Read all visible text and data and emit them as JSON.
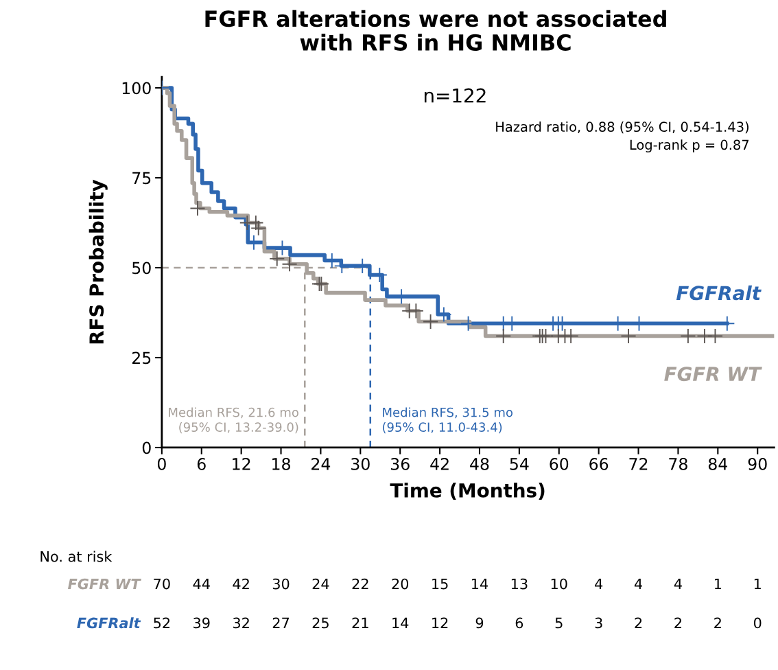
{
  "chart_data": [
    {
      "type": "step",
      "title": "FGFR alterations were not associated\nwith RFS in HG NMIBC",
      "subtitle": "n=122",
      "xlabel": "Time (Months)",
      "ylabel": "RFS Probability",
      "xlim": [
        0,
        92.5
      ],
      "ylim": [
        0,
        103
      ],
      "xticks": [
        0,
        6,
        12,
        18,
        24,
        30,
        36,
        42,
        48,
        54,
        60,
        66,
        72,
        78,
        84,
        90
      ],
      "yticks": [
        0,
        25,
        50,
        75,
        100
      ],
      "grid": false,
      "legend": false,
      "series": [
        {
          "name": "FGFRalt",
          "color": "#2e67b1",
          "x": [
            0,
            1.5,
            2.0,
            4.0,
            4.7,
            5.1,
            5.5,
            6.1,
            7.5,
            8.5,
            9.4,
            11.1,
            12.7,
            13.0,
            15.5,
            19.4,
            24.6,
            27.1,
            31.4,
            33.3,
            34.0,
            41.7,
            43.3,
            85.4
          ],
          "values": [
            100,
            94,
            91.5,
            90,
            87,
            83,
            77,
            73.5,
            71,
            68.5,
            66.5,
            64,
            62,
            57,
            55.5,
            53.5,
            52,
            50.5,
            48,
            44,
            42,
            37,
            34.5,
            34.5
          ]
        },
        {
          "name": "FGFR WT",
          "color": "#a8a19b",
          "x": [
            0,
            0.8,
            1.2,
            1.9,
            2.3,
            3.0,
            3.7,
            4.6,
            4.9,
            5.2,
            5.8,
            7.2,
            9.9,
            13.0,
            14.6,
            15.5,
            17.0,
            19.3,
            21.9,
            22.9,
            23.6,
            24.8,
            30.7,
            33.8,
            37.1,
            38.8,
            46.5,
            48.9,
            92.5
          ],
          "values": [
            100,
            98.5,
            95,
            90,
            88,
            85.5,
            80.5,
            73.5,
            70.5,
            68,
            66.5,
            65.5,
            64.5,
            62.5,
            61,
            54.5,
            52.5,
            51,
            48.5,
            47,
            45.5,
            43,
            41,
            39.5,
            38,
            35,
            33.5,
            31,
            31
          ]
        },
        {
          "type": "scatter",
          "marker": "cross",
          "color": "#2e67b1",
          "x": [
            0,
            13.9,
            18.2,
            25.7,
            27.2,
            30.3,
            32.9,
            36.2,
            42.6,
            46.3,
            51.6,
            52.9,
            59.1,
            59.9,
            60.5,
            68.9,
            72.1,
            85.4
          ],
          "values": [
            100,
            57,
            55.5,
            52,
            50.5,
            50.5,
            48,
            42,
            37,
            34.5,
            34.5,
            34.5,
            34.5,
            34.5,
            34.5,
            34.5,
            34.5,
            34.5
          ]
        },
        {
          "type": "scatter",
          "marker": "cross",
          "color": "#5b5552",
          "x": [
            5.4,
            12.9,
            14.2,
            14.6,
            17.4,
            19.3,
            23.8,
            24.1,
            37.4,
            38.4,
            40.6,
            51.6,
            57.1,
            57.5,
            58.0,
            59.9,
            60.9,
            61.8,
            70.5,
            79.5,
            82.0,
            83.6
          ],
          "values": [
            66.5,
            62.5,
            62.5,
            61,
            52.5,
            51,
            45.5,
            45.5,
            38,
            38,
            35,
            31,
            31,
            31,
            31,
            31,
            31,
            31,
            31,
            31,
            31,
            31
          ]
        }
      ],
      "ref_lines": [
        {
          "axis": "x",
          "value": 21.6,
          "color": "#a8a19b",
          "line_style": "dashed"
        },
        {
          "axis": "x",
          "value": 31.5,
          "color": "#2e67b1",
          "line_style": "dashed"
        },
        {
          "axis": "y",
          "value": 50,
          "color": "#a8a19b",
          "line_style": "dashed"
        }
      ],
      "annotations": [
        "Hazard ratio, 0.88 (95% CI, 0.54-1.43)\nLog-rank p = 0.87",
        {
          "text": "Median RFS, 21.6 mo\n(95% CI, 13.2-39.0)",
          "x": 21.6,
          "y": 0
        },
        {
          "text": "Median RFS, 31.5 mo\n(95% CI, 11.0-43.4)",
          "x": 31.5,
          "y": 0
        }
      ]
    },
    {
      "type": "other",
      "title": "No. at risk",
      "annotations": [
        "FGFR WT",
        "70",
        "44",
        "42",
        "30",
        "24",
        "22",
        "20",
        "15",
        "14",
        "13",
        "10",
        "4",
        "4",
        "4",
        "1",
        "1",
        "FGFRalt",
        "52",
        "39",
        "32",
        "27",
        "25",
        "21",
        "14",
        "12",
        "9",
        "6",
        "5",
        "3",
        "2",
        "2",
        "2",
        "0"
      ]
    }
  ]
}
